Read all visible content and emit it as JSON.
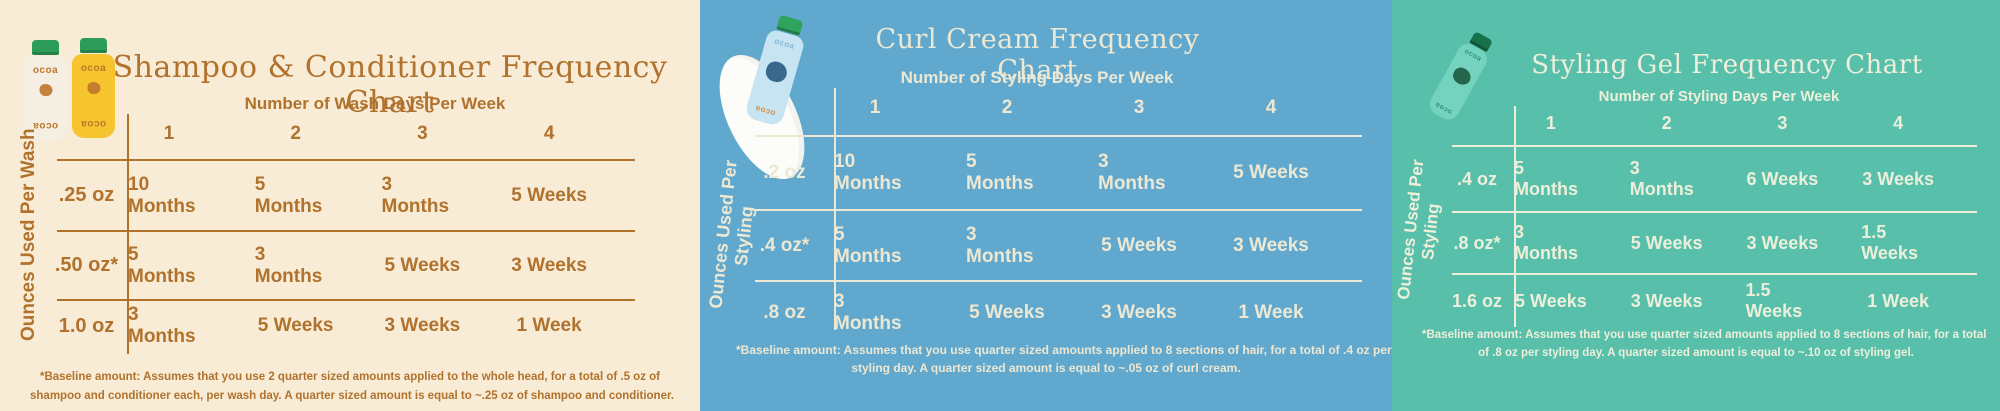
{
  "chart_data": [
    {
      "type": "table",
      "title": "Shampoo & Conditioner Frequency Chart",
      "x_axis_title": "Number of Wash Days Per Week",
      "y_axis_title": "Ounces Used Per Wash",
      "columns": [
        "1",
        "2",
        "3",
        "4"
      ],
      "rows": [
        {
          "label": ".25 oz",
          "values": [
            "10 Months",
            "5 Months",
            "3 Months",
            "5 Weeks"
          ]
        },
        {
          "label": ".50 oz*",
          "values": [
            "5 Months",
            "3 Months",
            "5 Weeks",
            "3 Weeks"
          ]
        },
        {
          "label": "1.0 oz",
          "values": [
            "3 Months",
            "5 Weeks",
            "3 Weeks",
            "1 Week"
          ]
        }
      ],
      "footnote_lines": [
        "*Baseline amount: Assumes that you use 2 quarter sized amounts applied to the whole head, for a total of .5 oz of",
        "shampoo and conditioner each, per wash day. A quarter sized amount is equal to ~.25 oz of shampoo and conditioner."
      ],
      "brand": "ocoa",
      "product_icon": "shampoo-and-conditioner-bottles",
      "background": "#f8ecd7",
      "text_color": "#b0722c"
    },
    {
      "type": "table",
      "title": "Curl Cream Frequency Chart",
      "x_axis_title": "Number of Styling Days Per Week",
      "y_axis_title": "Ounces Used Per Styling",
      "columns": [
        "1",
        "2",
        "3",
        "4"
      ],
      "rows": [
        {
          "label": ".2 oz",
          "values": [
            "10 Months",
            "5 Months",
            "3 Months",
            "5 Weeks"
          ]
        },
        {
          "label": ".4 oz*",
          "values": [
            "5 Months",
            "3 Months",
            "5 Weeks",
            "3 Weeks"
          ]
        },
        {
          "label": ".8 oz",
          "values": [
            "3 Months",
            "5 Weeks",
            "3 Weeks",
            "1 Week"
          ]
        }
      ],
      "footnote_lines": [
        "*Baseline amount: Assumes that you use quarter sized amounts applied to 8 sections of hair, for a total of .4 oz per",
        "styling day. A quarter sized amount is equal to ~.05 oz of curl cream."
      ],
      "brand": "ocoa",
      "product_icon": "curl-cream-bottle-on-cream-swatch",
      "background": "#60a8cd",
      "text_color": "#ece8d3"
    },
    {
      "type": "table",
      "title": "Styling Gel Frequency Chart",
      "x_axis_title": "Number of Styling Days Per Week",
      "y_axis_title": "Ounces Used Per Styling",
      "columns": [
        "1",
        "2",
        "3",
        "4"
      ],
      "rows": [
        {
          "label": ".4 oz",
          "values": [
            "5 Months",
            "3 Months",
            "6 Weeks",
            "3 Weeks"
          ]
        },
        {
          "label": ".8 oz*",
          "values": [
            "3 Months",
            "5 Weeks",
            "3 Weeks",
            "1.5 Weeks"
          ]
        },
        {
          "label": "1.6 oz",
          "values": [
            "5 Weeks",
            "3 Weeks",
            "1.5 Weeks",
            "1 Week"
          ]
        }
      ],
      "footnote_lines": [
        "*Baseline amount: Assumes that you use quarter sized amounts applied to 8 sections of hair, for a total",
        "of .8 oz per styling day. A quarter sized amount is equal to ~.10 oz of styling gel."
      ],
      "brand": "ocoa",
      "product_icon": "styling-gel-bottle",
      "background": "#57bfaa",
      "text_color": "#edefdb"
    }
  ]
}
